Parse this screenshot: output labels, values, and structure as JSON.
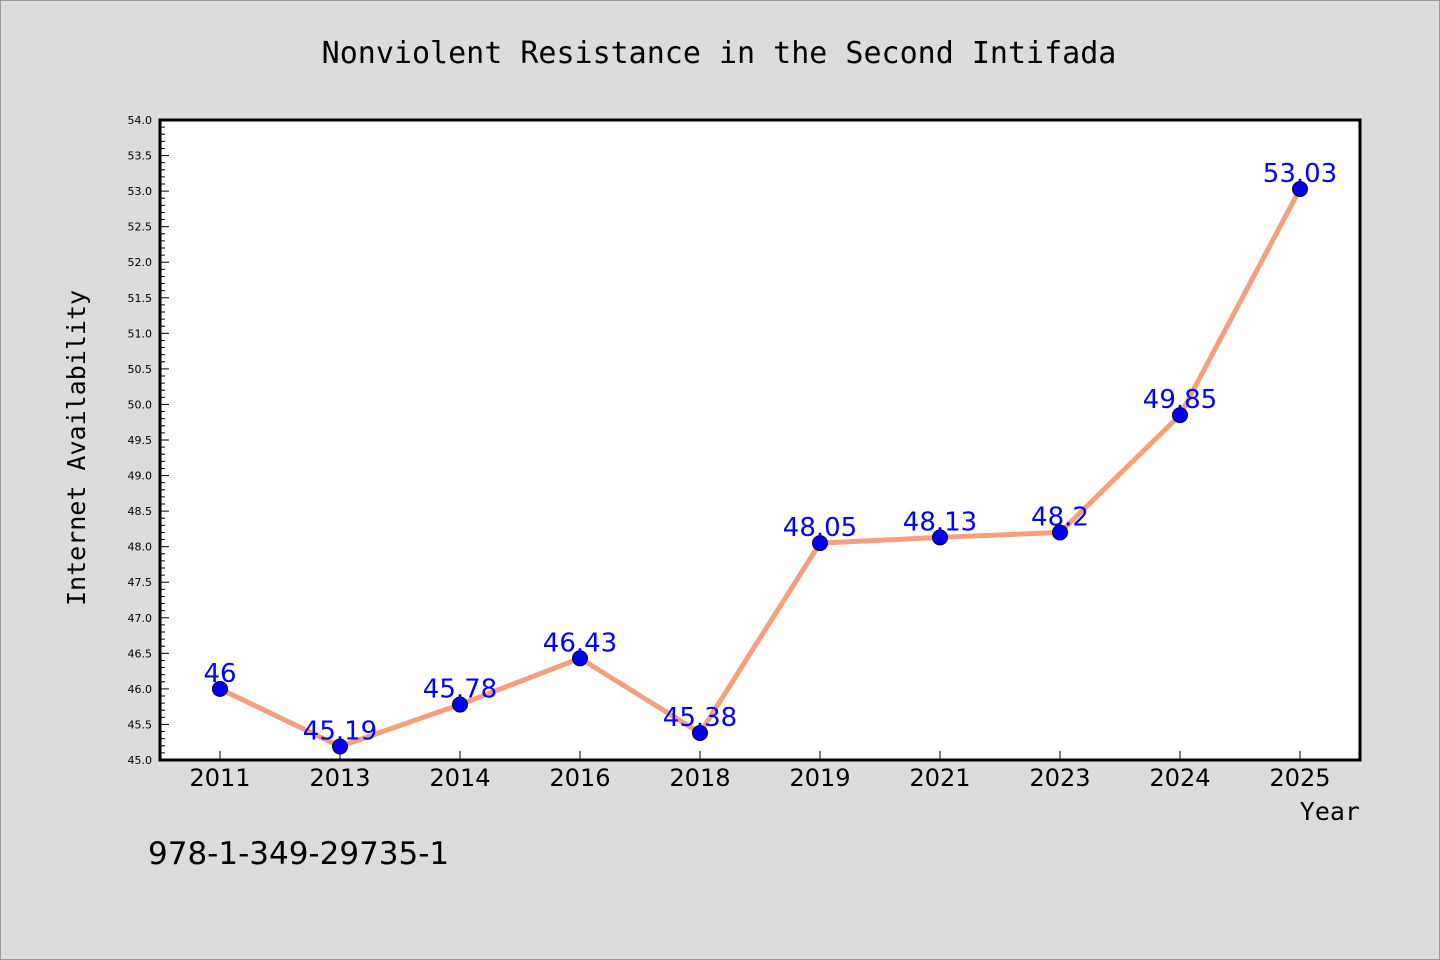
{
  "chart_data": {
    "type": "line",
    "title": "Nonviolent Resistance in the Second Intifada",
    "xlabel": "Year",
    "ylabel": "Internet Availability",
    "categories": [
      "2011",
      "2013",
      "2014",
      "2016",
      "2018",
      "2019",
      "2021",
      "2023",
      "2024",
      "2025"
    ],
    "series": [
      {
        "values": [
          46,
          45.19,
          45.78,
          46.43,
          45.38,
          48.05,
          48.13,
          48.2,
          49.85,
          53.03
        ],
        "labels": [
          "46",
          "45.19",
          "45.78",
          "46.43",
          "45.38",
          "48.05",
          "48.13",
          "48.2",
          "49.85",
          "53.03"
        ],
        "line_color": "#f4a07e",
        "marker_color": "#0000ee",
        "label_color": "#0000ff"
      }
    ],
    "ylim": [
      45.0,
      54.0
    ],
    "yticks": [
      "45.0",
      "45.5",
      "46.0",
      "46.5",
      "47.0",
      "47.5",
      "48.0",
      "48.5",
      "49.0",
      "49.5",
      "50.0",
      "50.5",
      "51.0",
      "51.5",
      "52.0",
      "52.5",
      "53.0",
      "53.5",
      "54.0"
    ],
    "grid": false,
    "background": "#dcdcdc",
    "plot_background": "#ffffff"
  },
  "footer": {
    "isbn": "978-1-349-29735-1"
  }
}
